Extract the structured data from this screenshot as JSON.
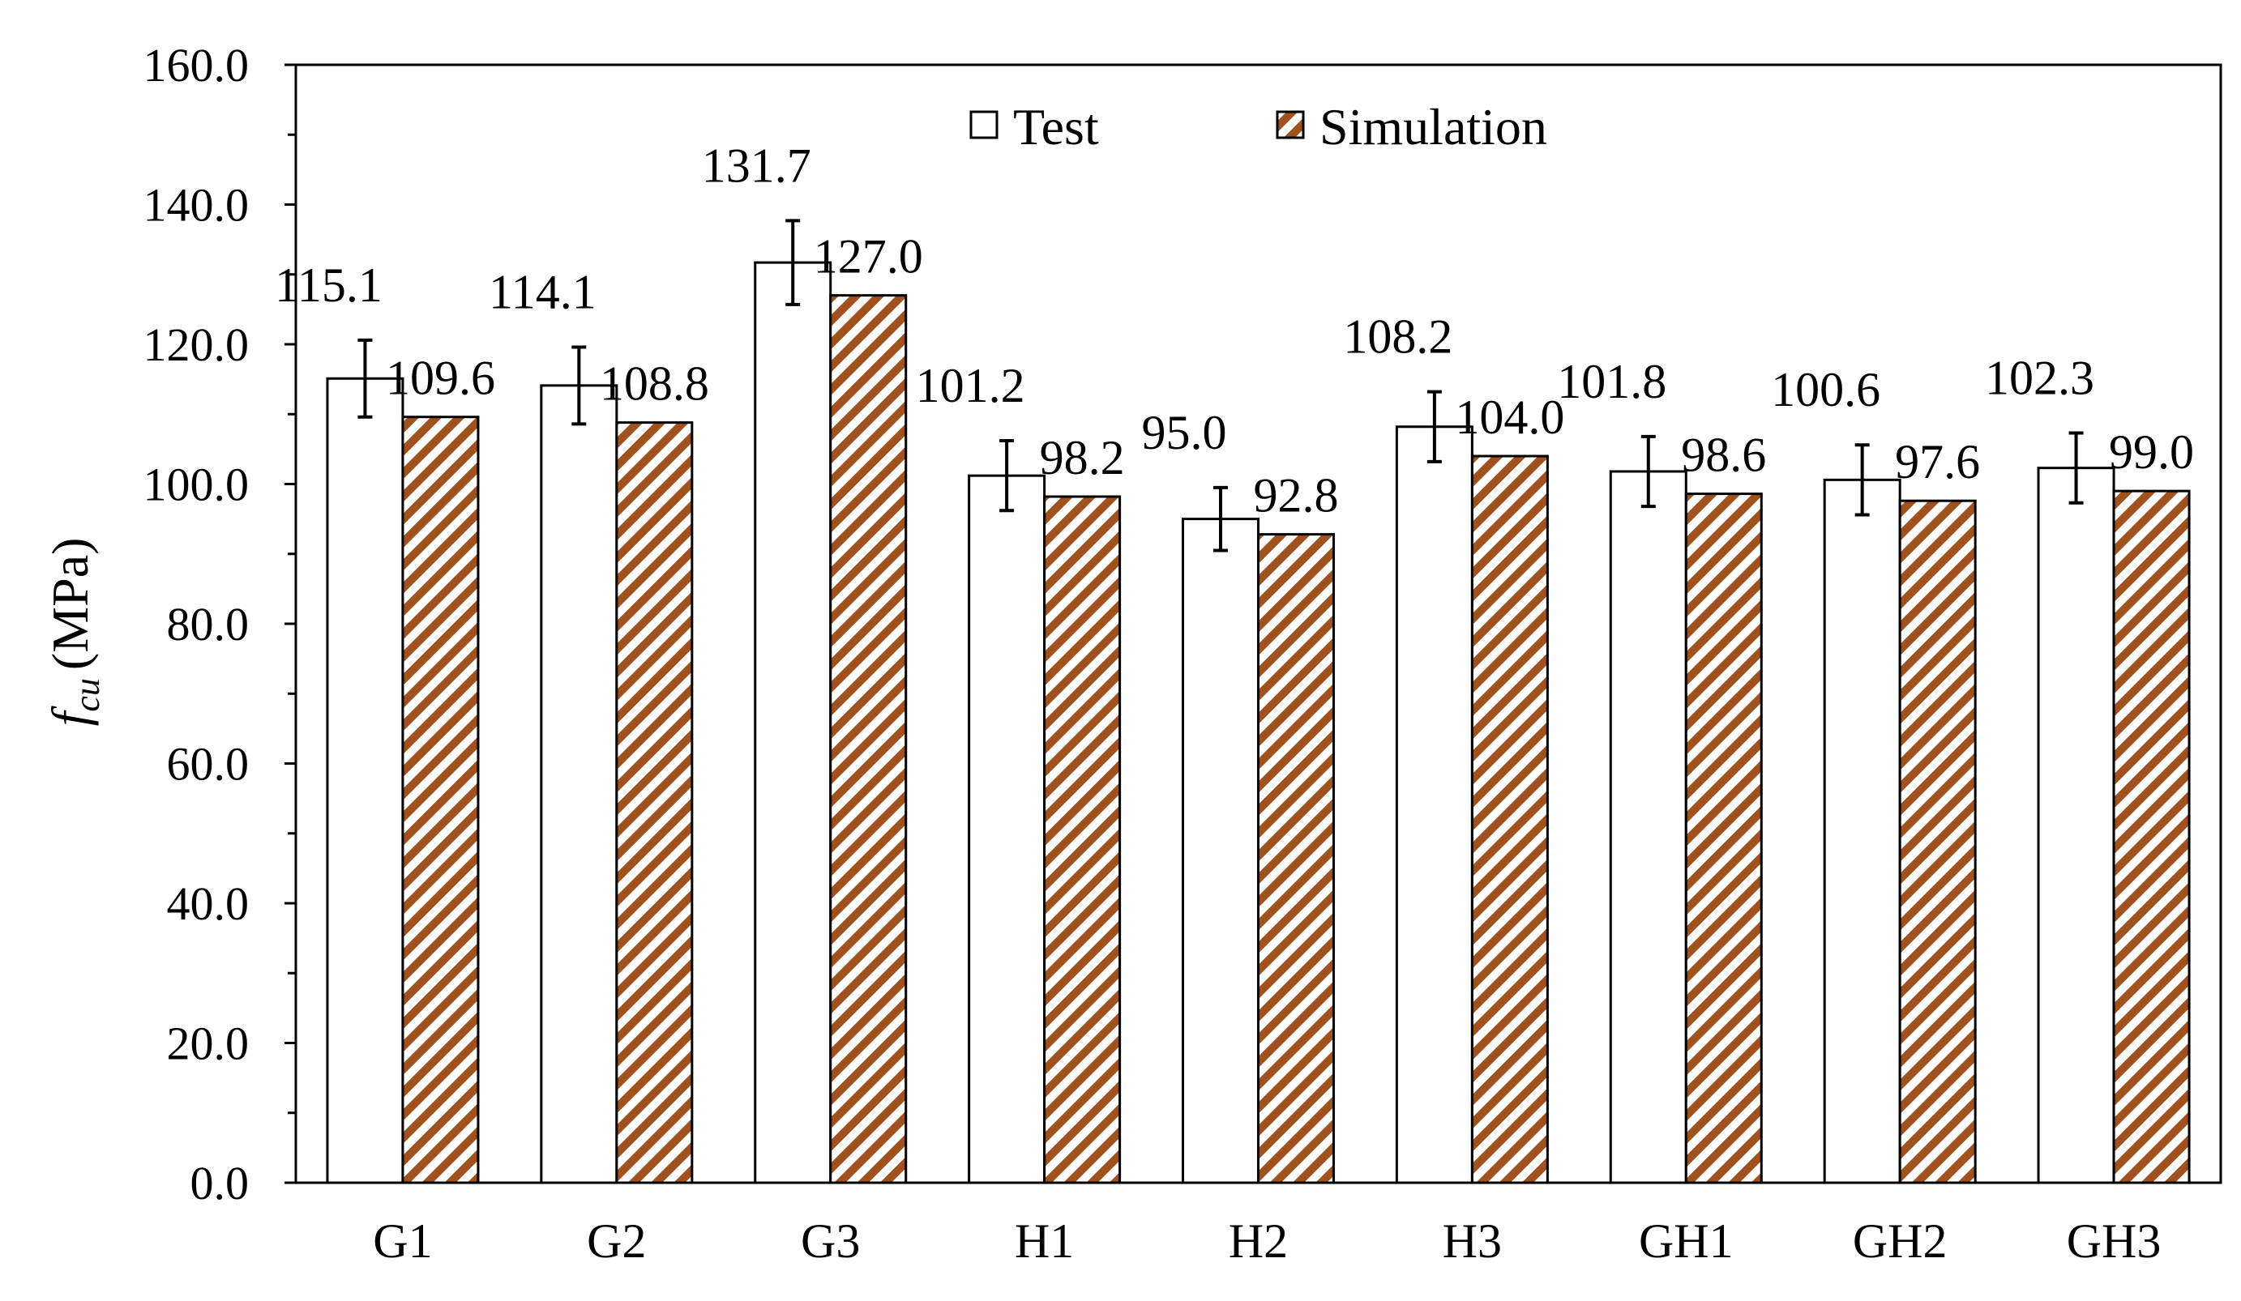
{
  "chart_data": {
    "type": "bar",
    "categories": [
      "G1",
      "G2",
      "G3",
      "H1",
      "H2",
      "H3",
      "GH1",
      "GH2",
      "GH3"
    ],
    "series": [
      {
        "name": "Test",
        "values": [
          115.1,
          114.1,
          131.7,
          101.2,
          95.0,
          108.2,
          101.8,
          100.6,
          102.3
        ],
        "value_labels": [
          "115.1",
          "114.1",
          "131.7",
          "101.2",
          "95.0",
          "108.2",
          "101.8",
          "100.6",
          "102.3"
        ],
        "error": [
          5.5,
          5.5,
          6.0,
          5.0,
          4.5,
          5.0,
          5.0,
          5.0,
          5.0
        ],
        "fill": "#ffffff",
        "stroke": "#000000"
      },
      {
        "name": "Simulation",
        "values": [
          109.6,
          108.8,
          127.0,
          98.2,
          92.8,
          104.0,
          98.6,
          97.6,
          99.0
        ],
        "value_labels": [
          "109.6",
          "108.8",
          "127.0",
          "98.2",
          "92.8",
          "104.0",
          "98.6",
          "97.6",
          "99.0"
        ],
        "fill": "hatched",
        "hatch_color": "#a0521e",
        "stroke": "#000000"
      }
    ],
    "ylabel_symbol": "f",
    "ylabel_subscript": "cu",
    "ylabel_unit": "(MPa)",
    "xlabel": "",
    "ylim": [
      0,
      160
    ],
    "yticks": [
      0,
      20,
      40,
      60,
      80,
      100,
      120,
      140,
      160
    ],
    "ytick_labels": [
      "0.0",
      "20.0",
      "40.0",
      "60.0",
      "80.0",
      "100.0",
      "120.0",
      "140.0",
      "160.0"
    ],
    "legend": {
      "entries": [
        "Test",
        "Simulation"
      ],
      "placement": "top-center"
    },
    "grid": false
  }
}
